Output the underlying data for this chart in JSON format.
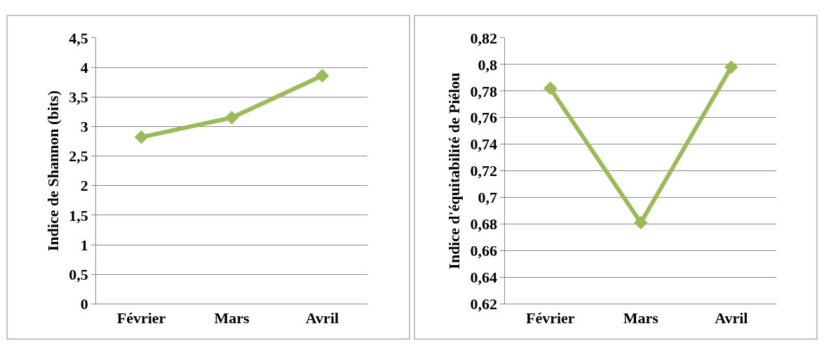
{
  "chart_data": [
    {
      "type": "line",
      "ylabel": "Indice de Shannon (bits)",
      "categories": [
        "Février",
        "Mars",
        "Avril"
      ],
      "values": [
        2.82,
        3.15,
        3.86
      ],
      "color": "#9bbb59",
      "marker": "diamond",
      "line_style": "solid",
      "grid": "y",
      "legend": false,
      "ylim": [
        0,
        4.5
      ],
      "yticks": [
        0,
        {
          "value": 0.5,
          "label": "0,5"
        },
        1,
        {
          "value": 1.5,
          "label": "1,5"
        },
        2,
        {
          "value": 2.5,
          "label": "2,5"
        },
        3,
        {
          "value": 3.5,
          "label": "3,5"
        },
        4,
        {
          "value": 4.5,
          "label": "4,5"
        }
      ]
    },
    {
      "type": "line",
      "ylabel": "Indice d'équitabilité de Piélou",
      "categories": [
        "Février",
        "Mars",
        "Avril"
      ],
      "values": [
        0.782,
        0.681,
        0.798
      ],
      "color": "#9bbb59",
      "marker": "diamond",
      "line_style": "solid",
      "grid": "y",
      "legend": false,
      "ylim": [
        0.62,
        0.82
      ],
      "yticks": [
        {
          "value": 0.62,
          "label": "0,62"
        },
        {
          "value": 0.64,
          "label": "0,64"
        },
        {
          "value": 0.66,
          "label": "0,66"
        },
        {
          "value": 0.68,
          "label": "0,68"
        },
        {
          "value": 0.7,
          "label": "0,7"
        },
        {
          "value": 0.72,
          "label": "0,72"
        },
        {
          "value": 0.74,
          "label": "0,74"
        },
        {
          "value": 0.76,
          "label": "0,76"
        },
        {
          "value": 0.78,
          "label": "0,78"
        },
        {
          "value": 0.8,
          "label": "0,8"
        },
        {
          "value": 0.82,
          "label": "0,82"
        }
      ]
    }
  ]
}
